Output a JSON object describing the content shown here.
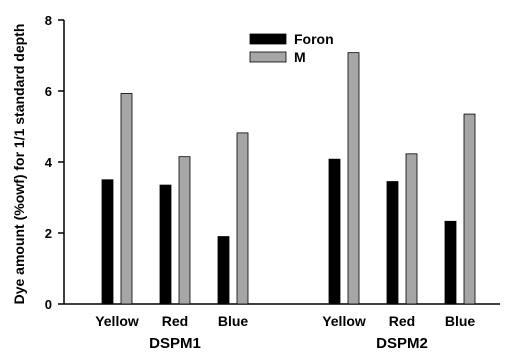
{
  "chart_data": {
    "type": "bar",
    "ylabel": "Dye amount (%owf) for 1/1 standard depth",
    "ylim": [
      0,
      8
    ],
    "yticks": [
      0,
      2,
      4,
      6,
      8
    ],
    "grid": false,
    "legend_position": "top-center",
    "groups": [
      {
        "label": "DSPM1",
        "categories": [
          "Yellow",
          "Red",
          "Blue"
        ]
      },
      {
        "label": "DSPM2",
        "categories": [
          "Yellow",
          "Red",
          "Blue"
        ]
      }
    ],
    "series": [
      {
        "name": "Foron",
        "color": "#000000",
        "values": [
          3.5,
          3.35,
          1.9,
          4.08,
          3.45,
          2.33
        ]
      },
      {
        "name": "M",
        "color": "#a6a6a6",
        "values": [
          5.93,
          4.15,
          4.82,
          7.08,
          4.23,
          5.35
        ]
      }
    ]
  }
}
